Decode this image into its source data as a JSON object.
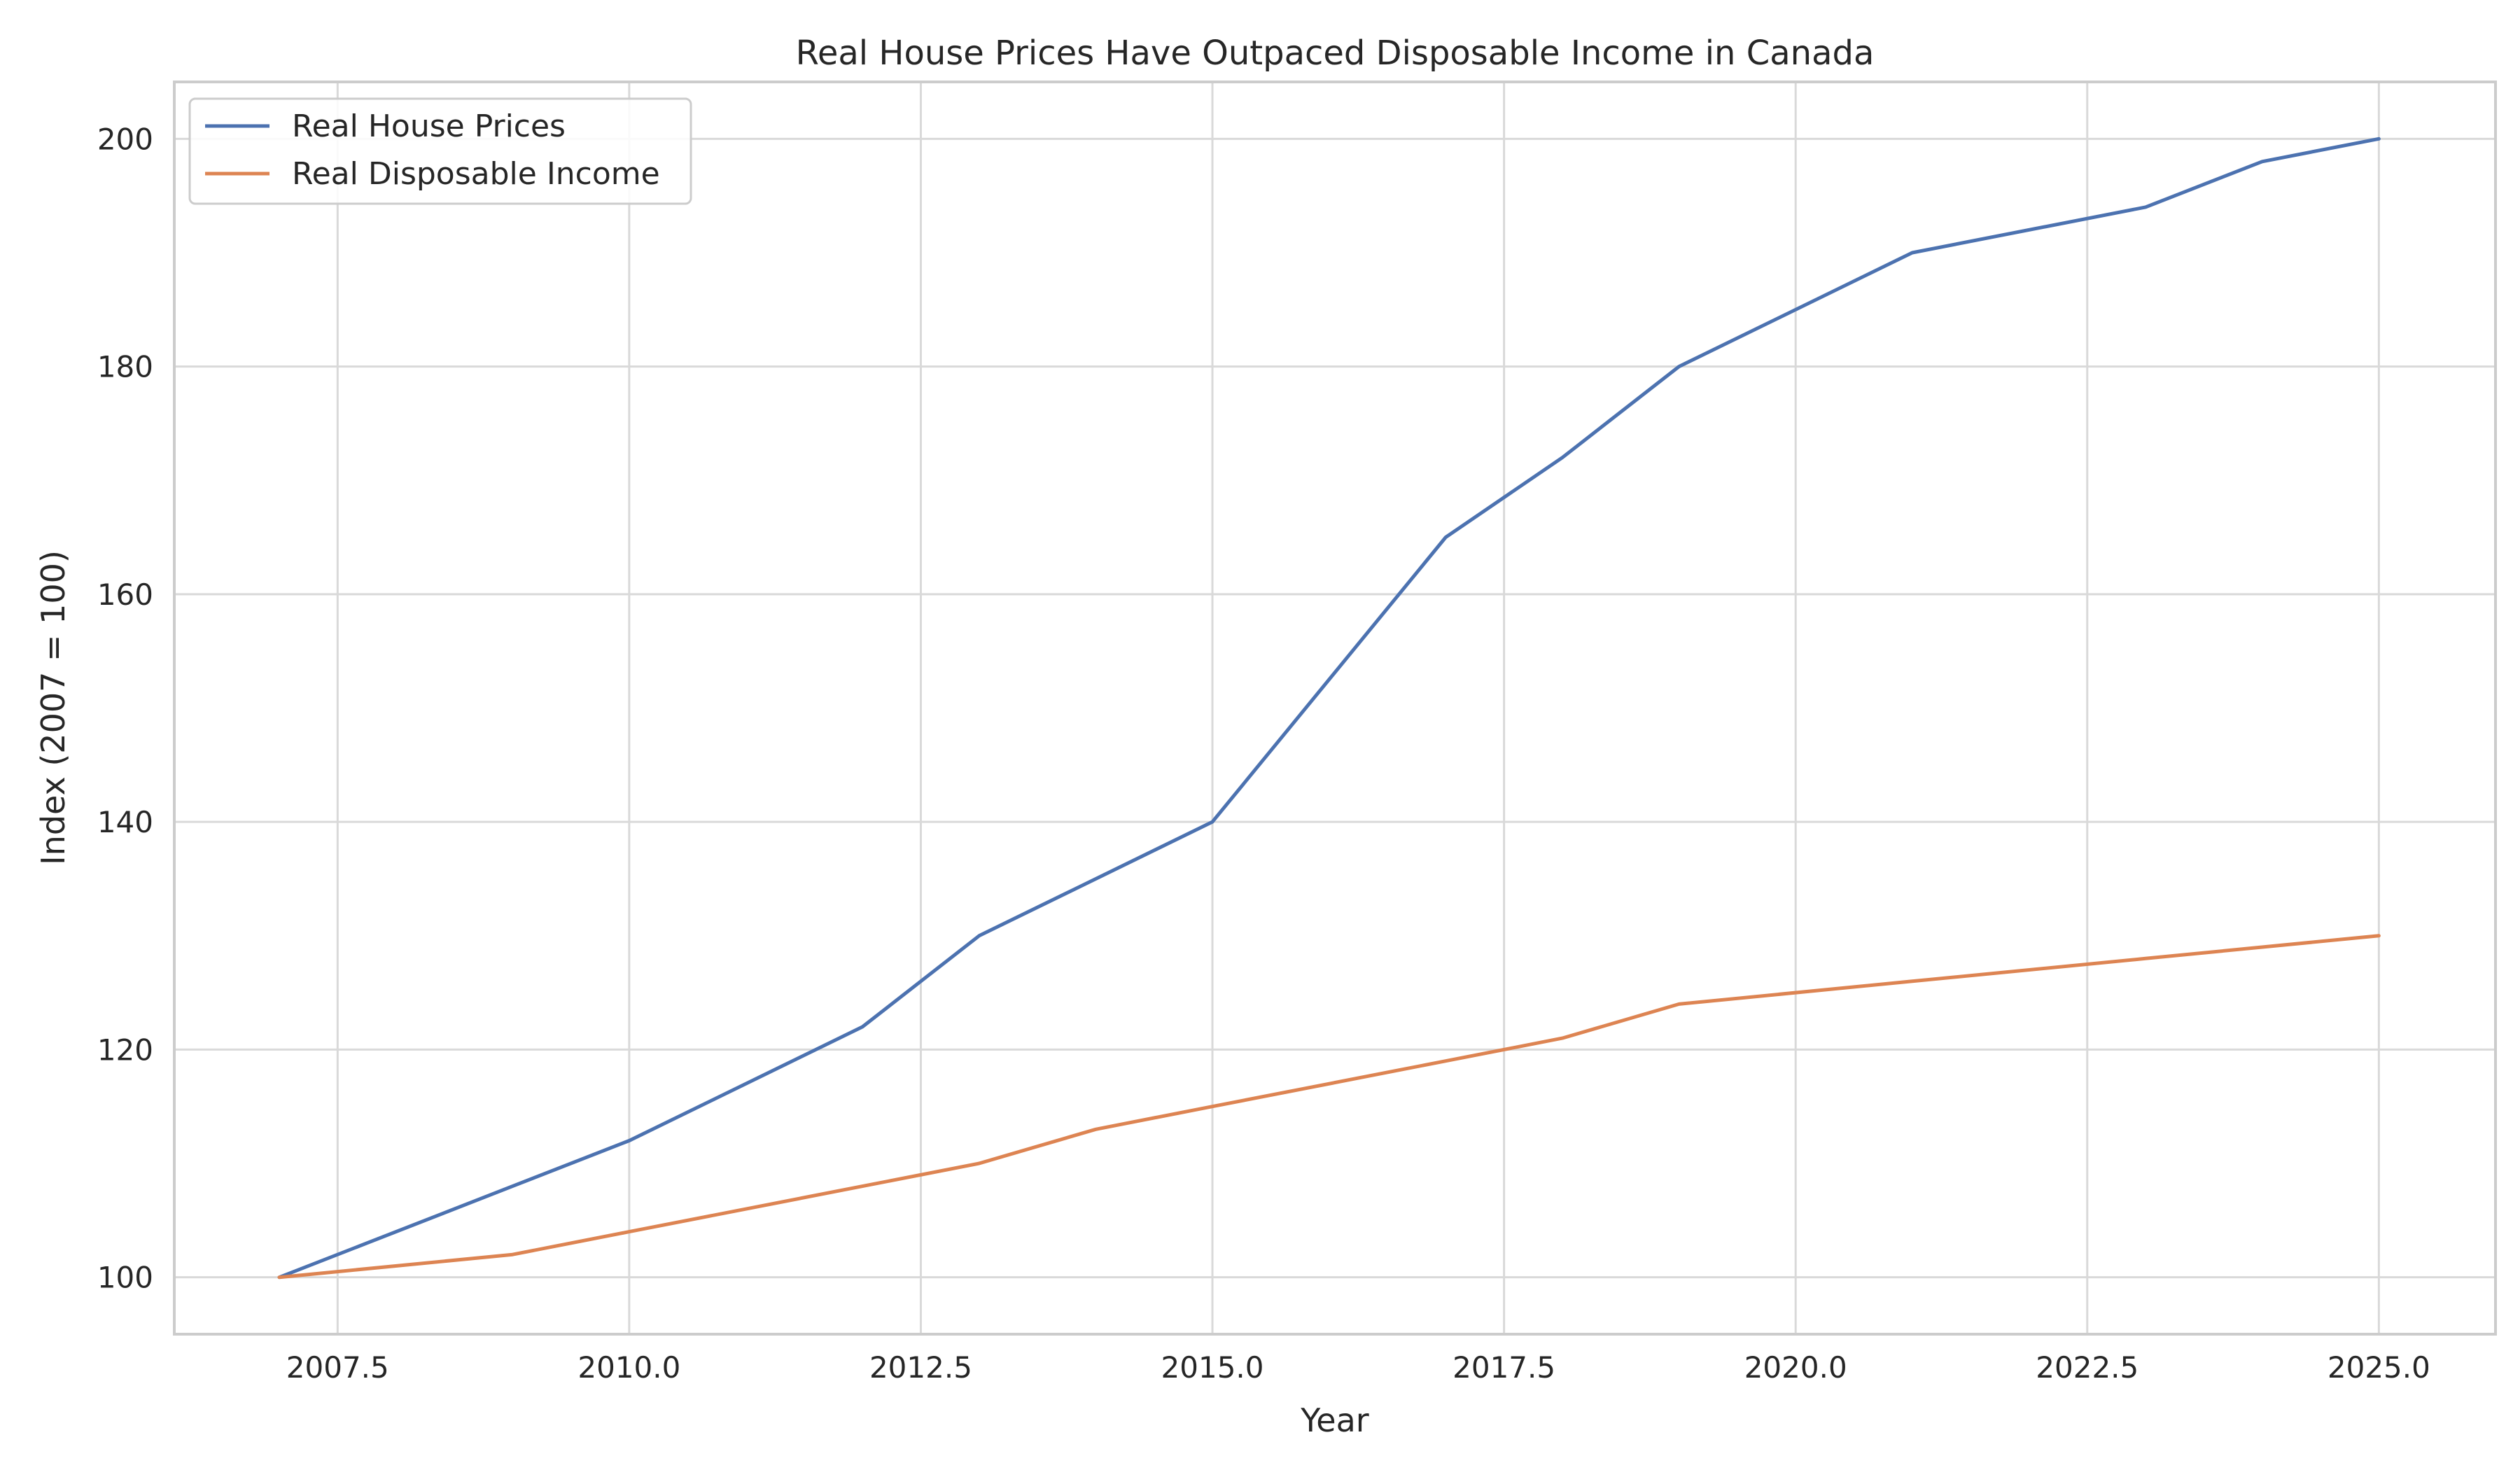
{
  "chart_data": {
    "type": "line",
    "title": "Real House Prices Have Outpaced Disposable Income in Canada",
    "xlabel": "Year",
    "ylabel": "Index (2007 = 100)",
    "xlim": [
      2006.1,
      2026.0
    ],
    "ylim": [
      95,
      205
    ],
    "x_ticks": [
      2007.5,
      2010.0,
      2012.5,
      2015.0,
      2017.5,
      2020.0,
      2022.5,
      2025.0
    ],
    "x_tick_labels": [
      "2007.5",
      "2010.0",
      "2012.5",
      "2015.0",
      "2017.5",
      "2020.0",
      "2022.5",
      "2025.0"
    ],
    "y_ticks": [
      100,
      120,
      140,
      160,
      180,
      200
    ],
    "y_tick_labels": [
      "100",
      "120",
      "140",
      "160",
      "180",
      "200"
    ],
    "grid": true,
    "legend_position": "top-left",
    "x": [
      2007,
      2009,
      2010,
      2012,
      2013,
      2014,
      2015,
      2017,
      2018,
      2019,
      2021,
      2023,
      2024,
      2025
    ],
    "series": [
      {
        "name": "Real House Prices",
        "color": "#4c72b0",
        "values": [
          100,
          108,
          112,
          122,
          130,
          135,
          140,
          165,
          172,
          180,
          190,
          194,
          198,
          200
        ]
      },
      {
        "name": "Real Disposable Income",
        "color": "#dd8452",
        "values": [
          100,
          102,
          104,
          108,
          110,
          113,
          115,
          119,
          121,
          124,
          126,
          128,
          129,
          130
        ]
      }
    ]
  }
}
